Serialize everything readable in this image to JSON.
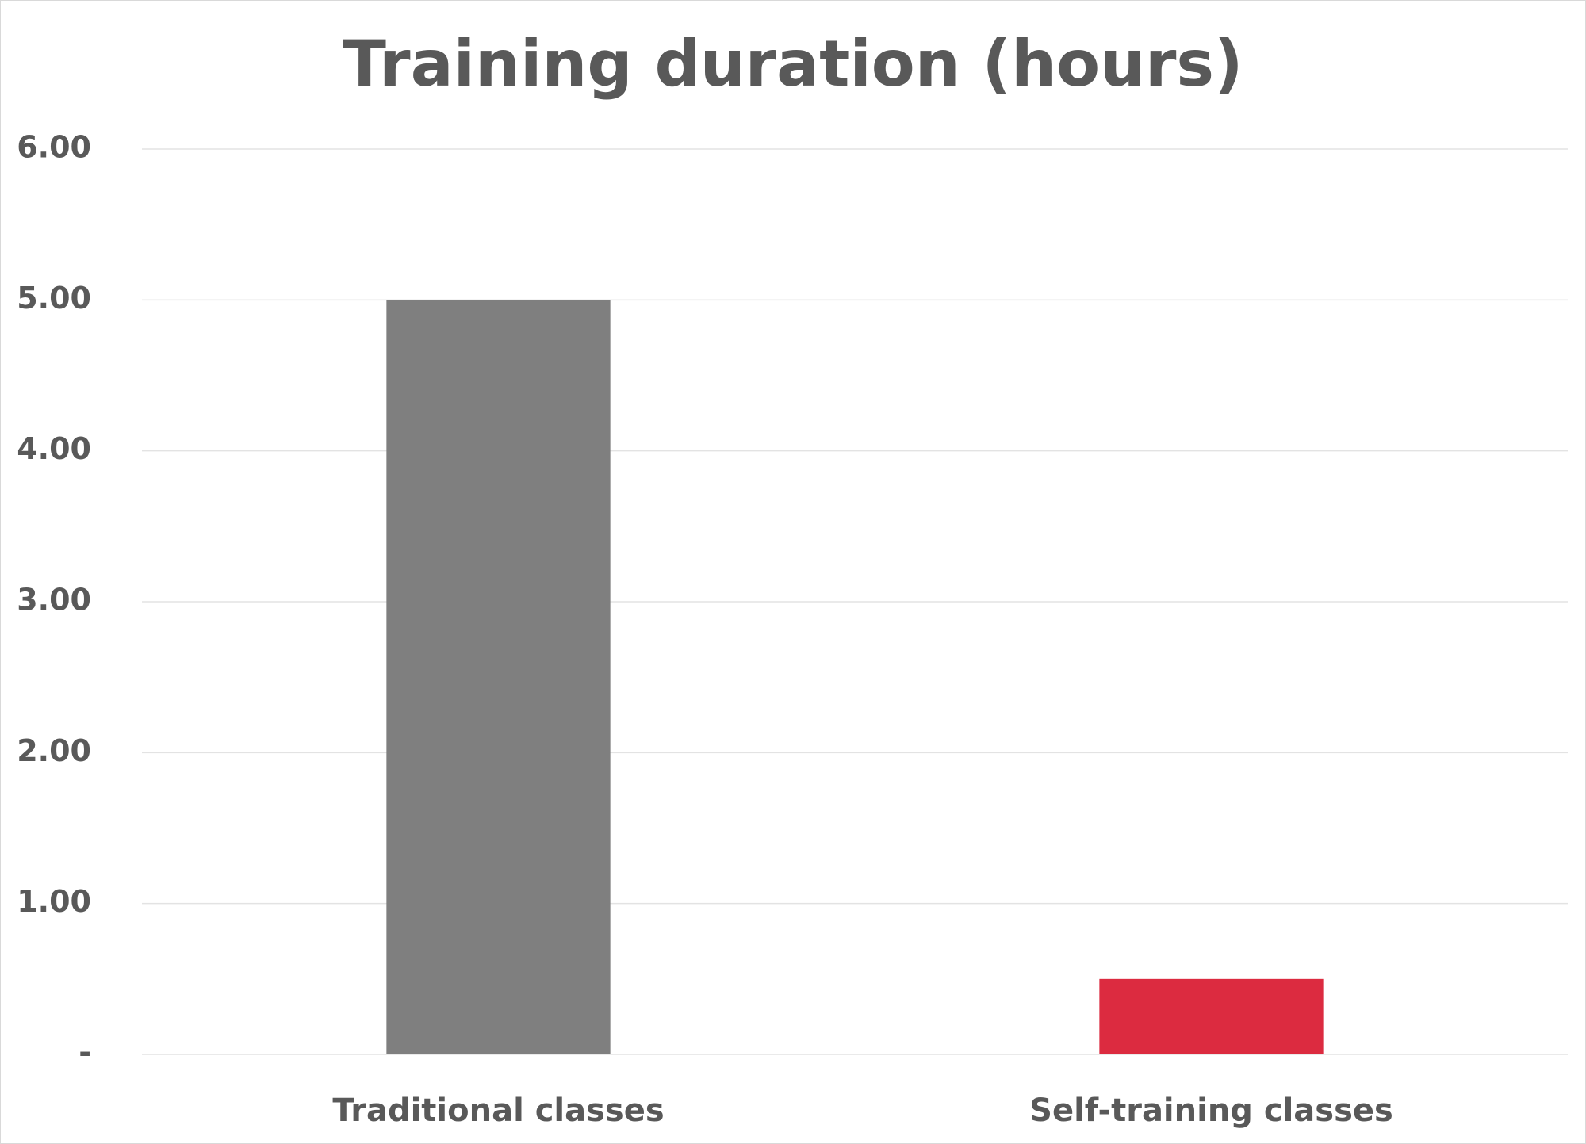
{
  "chart_data": {
    "type": "bar",
    "title": "Training duration (hours)",
    "categories": [
      "Traditional classes",
      "Self-training classes"
    ],
    "values": [
      5,
      0.5
    ],
    "colors": [
      "#7f7f7f",
      "#dc2b40"
    ],
    "ylim": [
      0,
      6
    ],
    "yticks": [
      {
        "value": 0,
        "label": "-"
      },
      {
        "value": 1,
        "label": "1.00"
      },
      {
        "value": 2,
        "label": "2.00"
      },
      {
        "value": 3,
        "label": "3.00"
      },
      {
        "value": 4,
        "label": "4.00"
      },
      {
        "value": 5,
        "label": "5.00"
      },
      {
        "value": 6,
        "label": "6.00"
      }
    ],
    "grid": true
  }
}
